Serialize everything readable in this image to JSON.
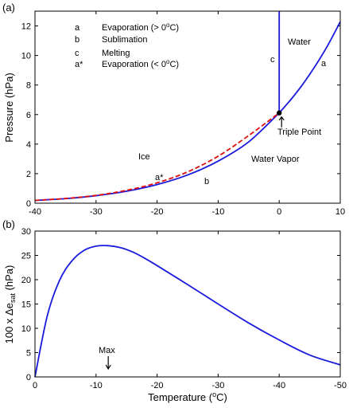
{
  "chart_data": [
    {
      "type": "line",
      "panel_label": "(a)",
      "xlabel": "",
      "ylabel": "Pressure (hPa)",
      "xlim": [
        -40,
        10
      ],
      "ylim": [
        0,
        13
      ],
      "x_ticks": [
        -40,
        -30,
        -20,
        -10,
        0,
        10
      ],
      "y_ticks": [
        0,
        2,
        4,
        6,
        8,
        10,
        12
      ],
      "series": [
        {
          "key": "b",
          "x": [
            -40,
            -35,
            -30,
            -25,
            -20,
            -15,
            -10,
            -5,
            0
          ],
          "y": [
            0.19,
            0.31,
            0.51,
            0.81,
            1.26,
            1.91,
            2.85,
            4.15,
            6.11
          ],
          "color": "#1a1adc",
          "style": "solid"
        },
        {
          "key": "a*",
          "x": [
            -40,
            -35,
            -30,
            -25,
            -20,
            -15,
            -10,
            -5,
            0
          ],
          "y": [
            0.19,
            0.32,
            0.53,
            0.87,
            1.38,
            2.12,
            3.18,
            4.58,
            6.11
          ],
          "color": "#e01010",
          "style": "dashed"
        },
        {
          "key": "a",
          "x": [
            0,
            2,
            4,
            6,
            8,
            10
          ],
          "y": [
            6.11,
            7.06,
            8.13,
            9.35,
            10.72,
            12.28
          ],
          "color": "#1a1adc",
          "style": "solid"
        },
        {
          "key": "c",
          "x": [
            0,
            0
          ],
          "y": [
            6.11,
            13
          ],
          "color": "#1a1adc",
          "style": "solid"
        }
      ],
      "triple_point": {
        "x": 0,
        "y": 6.11,
        "label": "Triple Point"
      },
      "legend": [
        {
          "key": "a",
          "text": "Evaporation (> 0",
          "sup": "o",
          "tail": "C)"
        },
        {
          "key": "b",
          "text": "Sublimation",
          "sup": "",
          "tail": ""
        },
        {
          "key": "c",
          "text": "Melting",
          "sup": "",
          "tail": ""
        },
        {
          "key": "a*",
          "text": "Evaporation (< 0",
          "sup": "o",
          "tail": "C)"
        }
      ],
      "region_labels": [
        "Ice",
        "Water Vapor",
        "Water"
      ],
      "curve_labels": [
        "a*",
        "b",
        "c",
        "a"
      ]
    },
    {
      "type": "line",
      "panel_label": "(b)",
      "xlabel": "Temperature (",
      "xlabel_sup": "o",
      "xlabel_tail": "C)",
      "ylabel": "100 x Δe",
      "ylabel_sub": "sat",
      "ylabel_tail": " (hPa)",
      "xlim": [
        0,
        -50
      ],
      "ylim": [
        0,
        30
      ],
      "x_ticks": [
        0,
        -10,
        -20,
        -30,
        -40,
        -50
      ],
      "y_ticks": [
        0,
        5,
        10,
        15,
        20,
        25,
        30
      ],
      "series": [
        {
          "key": "diff",
          "x": [
            0,
            -2,
            -4,
            -6,
            -8,
            -10,
            -12,
            -14,
            -16,
            -18,
            -20,
            -25,
            -30,
            -35,
            -40,
            -45,
            -50
          ],
          "y": [
            0,
            12.5,
            19.8,
            23.8,
            26.0,
            26.9,
            27.0,
            26.6,
            25.7,
            24.4,
            22.9,
            19.0,
            15.0,
            11.1,
            7.6,
            4.5,
            2.5
          ],
          "color": "#1a1adc",
          "style": "solid"
        }
      ],
      "annotation": {
        "x": -12,
        "text": "Max"
      }
    }
  ]
}
